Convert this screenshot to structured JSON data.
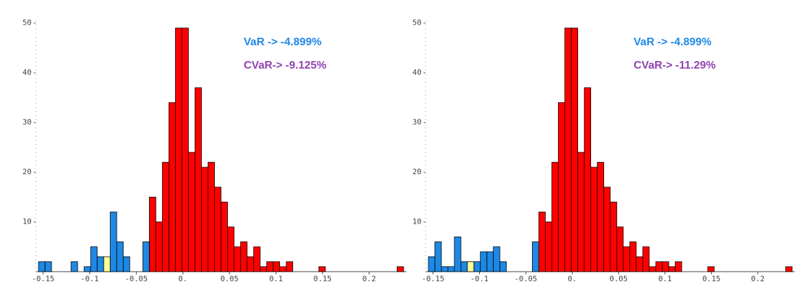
{
  "chart_data": [
    {
      "type": "histogram",
      "annotations": [
        {
          "text": "VaR -> -4.899%",
          "color": "#1e88e5"
        },
        {
          "text": "CVaR-> -9.125%",
          "color": "#8e44ad"
        }
      ],
      "bins": [
        -0.155,
        -0.148,
        -0.141,
        -0.134,
        -0.127,
        -0.12,
        -0.113,
        -0.106,
        -0.099,
        -0.092,
        -0.085,
        -0.078,
        -0.071,
        -0.064,
        -0.057,
        -0.05,
        -0.043,
        -0.036,
        -0.029,
        -0.022,
        -0.015,
        -0.008,
        -0.001,
        0.006,
        0.013,
        0.02,
        0.027,
        0.034,
        0.041,
        0.048,
        0.055,
        0.062,
        0.069,
        0.076,
        0.083,
        0.09,
        0.097,
        0.104,
        0.111,
        0.118,
        0.125,
        0.132,
        0.139,
        0.146,
        0.153,
        0.16,
        0.167,
        0.174,
        0.181,
        0.188,
        0.195,
        0.202,
        0.209,
        0.216,
        0.223,
        0.23,
        0.237
      ],
      "values": [
        2,
        2,
        0,
        0,
        0,
        2,
        0,
        1,
        5,
        3,
        3,
        12,
        6,
        3,
        0,
        0,
        6,
        15,
        10,
        22,
        34,
        49,
        49,
        24,
        37,
        21,
        22,
        17,
        14,
        9,
        5,
        6,
        3,
        5,
        1,
        2,
        2,
        1,
        2,
        0,
        0,
        0,
        0,
        1,
        0,
        0,
        0,
        0,
        0,
        0,
        0,
        0,
        0,
        0,
        0,
        1
      ],
      "colors": [
        "#1e88e5",
        "#1e88e5",
        "#1e88e5",
        "#1e88e5",
        "#1e88e5",
        "#1e88e5",
        "#1e88e5",
        "#1e88e5",
        "#1e88e5",
        "#1e88e5",
        "#ffff99",
        "#1e88e5",
        "#1e88e5",
        "#1e88e5",
        "#1e88e5",
        "#1e88e5",
        "#1e88e5",
        "#ff0000",
        "#ff0000",
        "#ff0000",
        "#ff0000",
        "#ff0000",
        "#ff0000",
        "#ff0000",
        "#ff0000",
        "#ff0000",
        "#ff0000",
        "#ff0000",
        "#ff0000",
        "#ff0000",
        "#ff0000",
        "#ff0000",
        "#ff0000",
        "#ff0000",
        "#ff0000",
        "#ff0000",
        "#ff0000",
        "#ff0000",
        "#ff0000",
        "#ff0000",
        "#ff0000",
        "#ff0000",
        "#ff0000",
        "#ff0000",
        "#ff0000",
        "#ff0000",
        "#ff0000",
        "#ff0000",
        "#ff0000",
        "#ff0000",
        "#ff0000",
        "#ff0000",
        "#ff0000",
        "#ff0000",
        "#ff0000",
        "#ff0000"
      ],
      "xlim": [
        -0.158,
        0.24
      ],
      "ylim": [
        0,
        50.5
      ],
      "xticks": [
        -0.15,
        -0.1,
        -0.05,
        {
          "value": 0,
          "label": "0."
        },
        0.05,
        0.1,
        0.15,
        0.2
      ],
      "yticks": [
        10,
        20,
        30,
        40,
        50
      ]
    },
    {
      "type": "histogram",
      "annotations": [
        {
          "text": "VaR -> -4.899%",
          "color": "#1e88e5"
        },
        {
          "text": "CVaR-> -11.29%",
          "color": "#8e44ad"
        }
      ],
      "bins": [
        -0.155,
        -0.148,
        -0.141,
        -0.134,
        -0.127,
        -0.12,
        -0.113,
        -0.106,
        -0.099,
        -0.092,
        -0.085,
        -0.078,
        -0.071,
        -0.064,
        -0.057,
        -0.05,
        -0.043,
        -0.036,
        -0.029,
        -0.022,
        -0.015,
        -0.008,
        -0.001,
        0.006,
        0.013,
        0.02,
        0.027,
        0.034,
        0.041,
        0.048,
        0.055,
        0.062,
        0.069,
        0.076,
        0.083,
        0.09,
        0.097,
        0.104,
        0.111,
        0.118,
        0.125,
        0.132,
        0.139,
        0.146,
        0.153,
        0.16,
        0.167,
        0.174,
        0.181,
        0.188,
        0.195,
        0.202,
        0.209,
        0.216,
        0.223,
        0.23,
        0.237
      ],
      "values": [
        3,
        6,
        1,
        1,
        7,
        2,
        2,
        2,
        4,
        4,
        5,
        2,
        0,
        0,
        0,
        0,
        6,
        12,
        10,
        22,
        34,
        49,
        49,
        24,
        37,
        21,
        22,
        17,
        14,
        9,
        5,
        6,
        3,
        5,
        1,
        2,
        2,
        1,
        2,
        0,
        0,
        0,
        0,
        1,
        0,
        0,
        0,
        0,
        0,
        0,
        0,
        0,
        0,
        0,
        0,
        1
      ],
      "colors": [
        "#1e88e5",
        "#1e88e5",
        "#1e88e5",
        "#1e88e5",
        "#1e88e5",
        "#1e88e5",
        "#ffff99",
        "#1e88e5",
        "#1e88e5",
        "#1e88e5",
        "#1e88e5",
        "#1e88e5",
        "#1e88e5",
        "#1e88e5",
        "#1e88e5",
        "#1e88e5",
        "#1e88e5",
        "#ff0000",
        "#ff0000",
        "#ff0000",
        "#ff0000",
        "#ff0000",
        "#ff0000",
        "#ff0000",
        "#ff0000",
        "#ff0000",
        "#ff0000",
        "#ff0000",
        "#ff0000",
        "#ff0000",
        "#ff0000",
        "#ff0000",
        "#ff0000",
        "#ff0000",
        "#ff0000",
        "#ff0000",
        "#ff0000",
        "#ff0000",
        "#ff0000",
        "#ff0000",
        "#ff0000",
        "#ff0000",
        "#ff0000",
        "#ff0000",
        "#ff0000",
        "#ff0000",
        "#ff0000",
        "#ff0000",
        "#ff0000",
        "#ff0000",
        "#ff0000",
        "#ff0000",
        "#ff0000",
        "#ff0000",
        "#ff0000",
        "#ff0000"
      ],
      "xlim": [
        -0.158,
        0.24
      ],
      "ylim": [
        0,
        50.5
      ],
      "xticks": [
        -0.15,
        -0.1,
        -0.05,
        {
          "value": 0,
          "label": "0."
        },
        0.05,
        0.1,
        0.15,
        0.2
      ],
      "yticks": [
        10,
        20,
        30,
        40,
        50
      ]
    }
  ]
}
